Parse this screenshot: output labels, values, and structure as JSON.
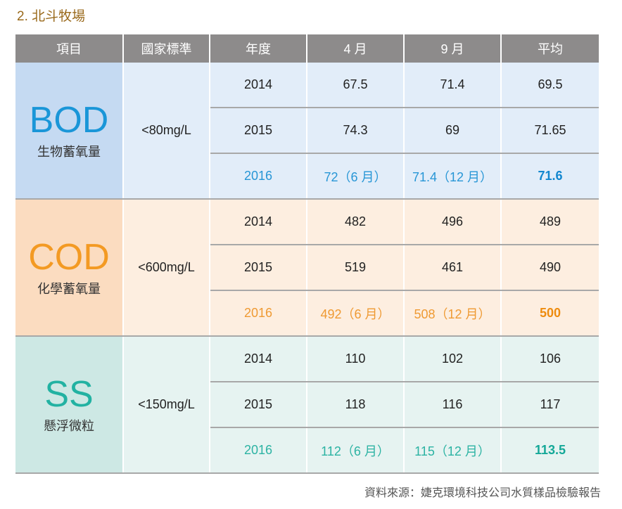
{
  "section_title": "2. 北斗牧場",
  "table": {
    "headers": [
      "項目",
      "國家標準",
      "年度",
      "4 月",
      "9 月",
      "平均"
    ],
    "groups": [
      {
        "code": "BOD",
        "name": "生物蓄氧量",
        "standard": "<80mg/L",
        "rows": [
          {
            "year": "2014",
            "apr": "67.5",
            "sep": "71.4",
            "avg": "69.5"
          },
          {
            "year": "2015",
            "apr": "74.3",
            "sep": "69",
            "avg": "71.65"
          },
          {
            "year": "2016",
            "apr": "72（6 月）",
            "sep": "71.4（12 月）",
            "avg": "71.6"
          }
        ]
      },
      {
        "code": "COD",
        "name": "化學蓄氧量",
        "standard": "<600mg/L",
        "rows": [
          {
            "year": "2014",
            "apr": "482",
            "sep": "496",
            "avg": "489"
          },
          {
            "year": "2015",
            "apr": "519",
            "sep": "461",
            "avg": "490"
          },
          {
            "year": "2016",
            "apr": "492（6 月）",
            "sep": "508（12 月）",
            "avg": "500"
          }
        ]
      },
      {
        "code": "SS",
        "name": "懸浮微粒",
        "standard": "<150mg/L",
        "rows": [
          {
            "year": "2014",
            "apr": "110",
            "sep": "102",
            "avg": "106"
          },
          {
            "year": "2015",
            "apr": "118",
            "sep": "116",
            "avg": "117"
          },
          {
            "year": "2016",
            "apr": "112（6 月）",
            "sep": "115（12 月）",
            "avg": "113.5"
          }
        ]
      }
    ]
  },
  "source_note": "資料來源：婕克環境科技公司水質樣品檢驗報告",
  "colors": {
    "header_bg": "#8d8b8b",
    "title": "#9a6a1c",
    "bod": "#1a96d8",
    "cod": "#f39a23",
    "ss": "#22b2a2"
  }
}
